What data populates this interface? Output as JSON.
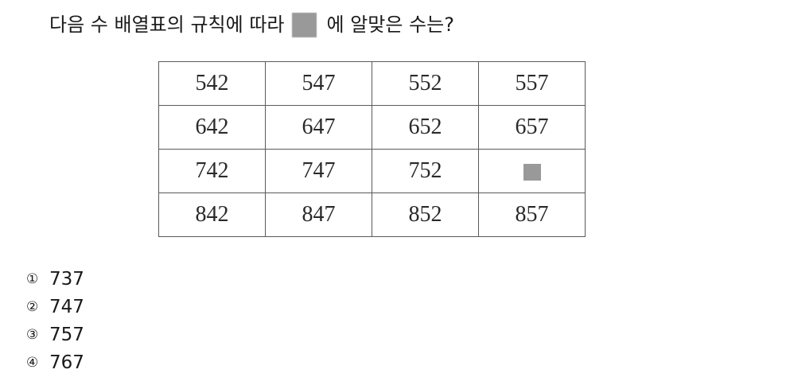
{
  "question": {
    "text_before_blank": "다음 수 배열표의 규칙에 따라",
    "text_after_blank": "에 알맞은 수는?"
  },
  "blank_color": "#999999",
  "table": {
    "rows": [
      [
        "542",
        "547",
        "552",
        "557"
      ],
      [
        "642",
        "647",
        "652",
        "657"
      ],
      [
        "742",
        "747",
        "752",
        null
      ],
      [
        "842",
        "847",
        "852",
        "857"
      ]
    ]
  },
  "options": [
    {
      "marker": "①",
      "value": "737"
    },
    {
      "marker": "②",
      "value": "747"
    },
    {
      "marker": "③",
      "value": "757"
    },
    {
      "marker": "④",
      "value": "767"
    }
  ]
}
